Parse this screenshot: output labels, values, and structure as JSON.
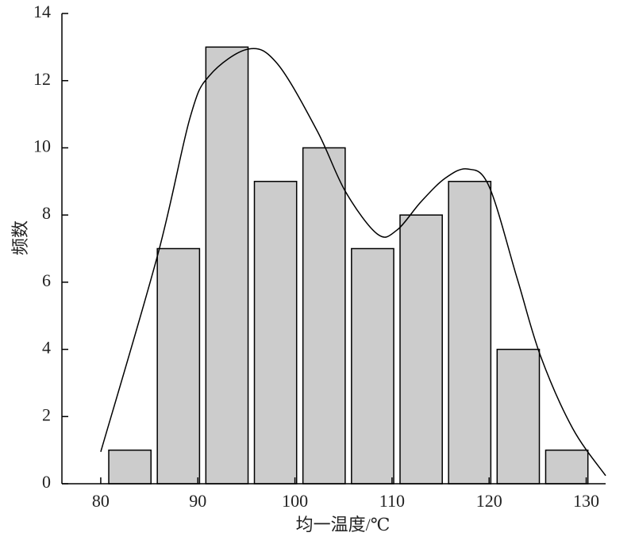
{
  "chart_data": {
    "type": "histogram",
    "xlabel": "均一温度/℃",
    "ylabel": "频数",
    "bins": [
      80.5,
      85.5,
      90.5,
      95.5,
      100.5,
      105.5,
      110.5,
      115.5,
      120.5,
      125.5,
      130.5
    ],
    "values": [
      1,
      7,
      13,
      9,
      10,
      7,
      8,
      9,
      4,
      1
    ],
    "color": "#cccccc",
    "curve": {
      "x": [
        80,
        85.9,
        89.2,
        91.2,
        95.2,
        98.2,
        102.3,
        105.2,
        108.5,
        110.5,
        113,
        115.5,
        117.8,
        120,
        122.9,
        125.3,
        128.6,
        132
      ],
      "y": [
        0.95,
        6.85,
        10.9,
        12.15,
        12.94,
        12.5,
        10.5,
        8.7,
        7.43,
        7.55,
        8.4,
        9.1,
        9.37,
        8.85,
        6.1,
        3.8,
        1.65,
        0.24
      ]
    },
    "xlim": [
      76,
      132
    ],
    "xticks": [
      80,
      90,
      100,
      110,
      120,
      130
    ],
    "ylim": [
      0,
      14
    ],
    "yticks": [
      0,
      2,
      4,
      6,
      8,
      10,
      12,
      14
    ]
  }
}
